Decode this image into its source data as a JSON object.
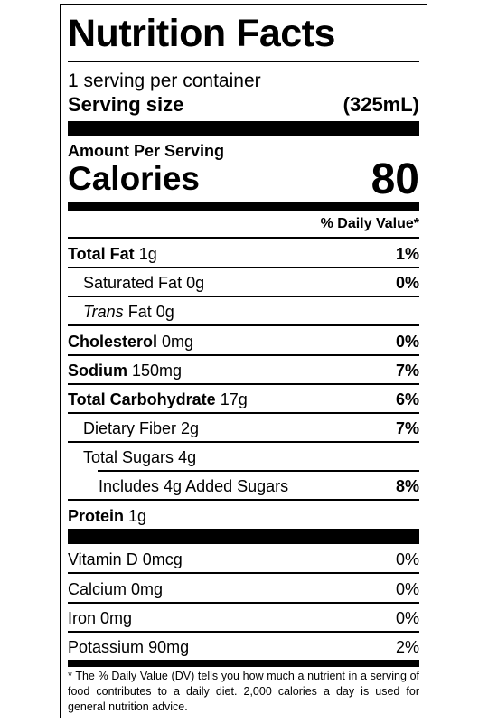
{
  "title": "Nutrition Facts",
  "servings_per_container": "1 serving per container",
  "serving_size_label": "Serving size",
  "serving_size_value": "(325mL)",
  "amount_per_serving": "Amount Per Serving",
  "calories_label": "Calories",
  "calories_value": "80",
  "daily_value_header": "% Daily Value*",
  "nutrients": [
    {
      "name": "Total Fat",
      "amount": "1g",
      "dv": "1%"
    },
    {
      "name": "Saturated Fat",
      "amount": "0g",
      "dv": "0%"
    },
    {
      "name_italic": "Trans",
      "name": "Fat",
      "amount": "0g",
      "dv": ""
    },
    {
      "name": "Cholesterol",
      "amount": "0mg",
      "dv": "0%"
    },
    {
      "name": "Sodium",
      "amount": "150mg",
      "dv": "7%"
    },
    {
      "name": "Total Carbohydrate",
      "amount": "17g",
      "dv": "6%"
    },
    {
      "name": "Dietary Fiber",
      "amount": "2g",
      "dv": "7%"
    },
    {
      "name": "Total Sugars",
      "amount": "4g",
      "dv": ""
    },
    {
      "name": "Includes 4g Added Sugars",
      "amount": "",
      "dv": "8%"
    },
    {
      "name": "Protein",
      "amount": "1g",
      "dv": ""
    }
  ],
  "vitamins": [
    {
      "name": "Vitamin D",
      "amount": "0mcg",
      "dv": "0%"
    },
    {
      "name": "Calcium",
      "amount": "0mg",
      "dv": "0%"
    },
    {
      "name": "Iron",
      "amount": "0mg",
      "dv": "0%"
    },
    {
      "name": "Potassium",
      "amount": "90mg",
      "dv": "2%"
    }
  ],
  "footnote": "* The % Daily Value (DV) tells you how much a nutrient in a serving of food contributes to a daily diet. 2,000 calories a day is used for general nutrition advice."
}
